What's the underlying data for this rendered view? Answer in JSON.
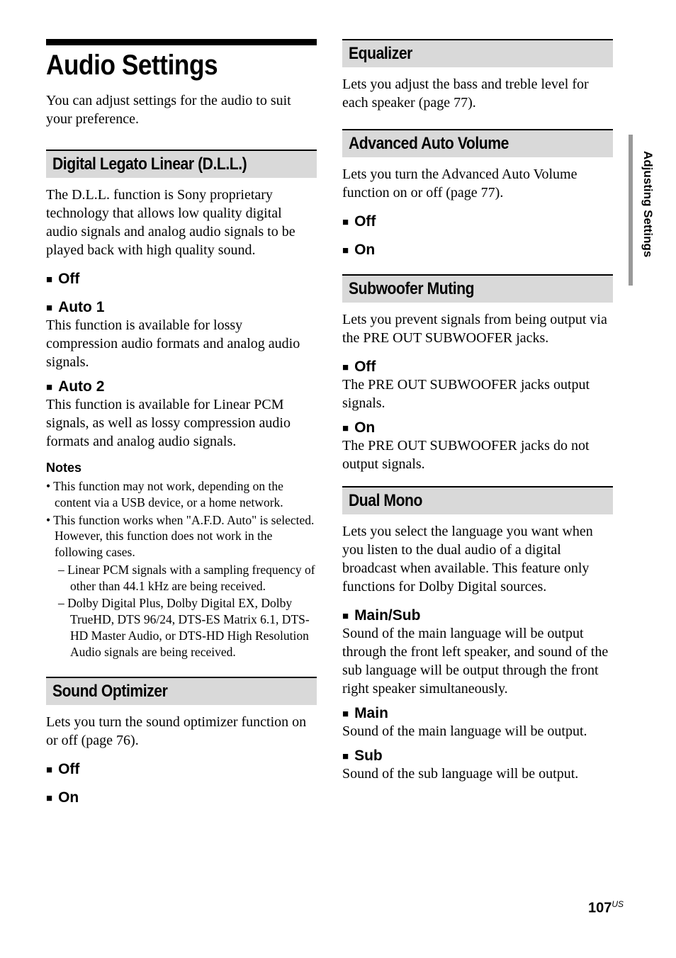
{
  "page": {
    "number": "107",
    "region": "US",
    "side_label": "Adjusting Settings"
  },
  "title": "Audio Settings",
  "intro": "You can adjust settings for the audio to suit your preference.",
  "left": {
    "dll": {
      "heading": "Digital Legato Linear (D.L.L.)",
      "desc": "The D.L.L. function is Sony proprietary technology that allows low quality digital audio signals and analog audio signals to be played back with high quality sound.",
      "opt_off": "Off",
      "opt_auto1": "Auto 1",
      "auto1_desc": "This function is available for lossy compression audio formats and analog audio signals.",
      "opt_auto2": "Auto 2",
      "auto2_desc": "This function is available for Linear PCM signals, as well as lossy compression audio formats and analog audio signals.",
      "notes_heading": "Notes",
      "note1": "• This function may not work, depending on the content via a USB device, or a home network.",
      "note2": "• This function works when \"A.F.D. Auto\" is selected. However, this function does not work in the following cases.",
      "note_sub1": "–  Linear PCM signals with a sampling frequency of other than 44.1 kHz are being received.",
      "note_sub2": "–  Dolby Digital Plus, Dolby Digital EX, Dolby TrueHD, DTS 96/24, DTS-ES Matrix 6.1, DTS-HD Master Audio, or DTS-HD High Resolution Audio signals are being received."
    },
    "sound_opt": {
      "heading": "Sound Optimizer",
      "desc": "Lets you turn the sound optimizer function on or off (page 76).",
      "opt_off": "Off",
      "opt_on": "On"
    }
  },
  "right": {
    "eq": {
      "heading": "Equalizer",
      "desc": "Lets you adjust the bass and treble level for each speaker (page 77)."
    },
    "aav": {
      "heading": "Advanced Auto Volume",
      "desc": "Lets you turn the Advanced Auto Volume function on or off (page 77).",
      "opt_off": "Off",
      "opt_on": "On"
    },
    "sub": {
      "heading": "Subwoofer Muting",
      "desc": "Lets you prevent signals from being output via the PRE OUT SUBWOOFER jacks.",
      "opt_off": "Off",
      "off_desc": "The PRE OUT SUBWOOFER jacks output signals.",
      "opt_on": "On",
      "on_desc": "The PRE OUT SUBWOOFER jacks do not output signals."
    },
    "dual": {
      "heading": "Dual Mono",
      "desc": "Lets you select the language you want when you listen to the dual audio of a digital broadcast when available. This feature only functions for Dolby Digital sources.",
      "opt_mainsub": "Main/Sub",
      "mainsub_desc": "Sound of the main language will be output through the front left speaker, and sound of the sub language will be output through the front right speaker simultaneously.",
      "opt_main": "Main",
      "main_desc": "Sound of the main language will be output.",
      "opt_sub": "Sub",
      "sub_desc": "Sound of the sub language will be output."
    }
  }
}
